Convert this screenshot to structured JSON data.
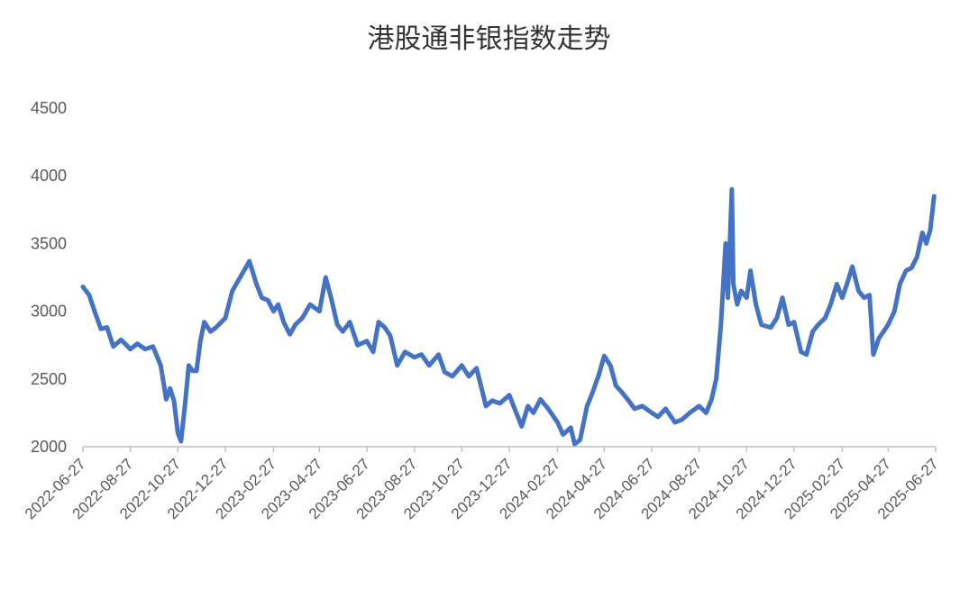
{
  "chart_data": {
    "type": "line",
    "title": "港股通非银指数走势",
    "xlabel": "",
    "ylabel": "",
    "ylim": [
      2000,
      4500
    ],
    "yticks": [
      2000,
      2500,
      3000,
      3500,
      4000,
      4500
    ],
    "xticks": [
      "2022-06-27",
      "2022-08-27",
      "2022-10-27",
      "2022-12-27",
      "2023-02-27",
      "2023-04-27",
      "2023-06-27",
      "2023-08-27",
      "2023-10-27",
      "2023-12-27",
      "2024-02-27",
      "2024-04-27",
      "2024-06-27",
      "2024-08-27",
      "2024-10-27",
      "2024-12-27",
      "2025-02-27",
      "2025-04-27",
      "2025-06-27"
    ],
    "grid": false,
    "legend": "none",
    "colors": {
      "line": "#4472C4",
      "axis": "#BFBFBF"
    },
    "series": [
      {
        "values": [
          [
            "2022-06-27",
            3180
          ],
          [
            "2022-07-05",
            3120
          ],
          [
            "2022-07-12",
            3000
          ],
          [
            "2022-07-20",
            2870
          ],
          [
            "2022-07-28",
            2880
          ],
          [
            "2022-08-05",
            2740
          ],
          [
            "2022-08-15",
            2790
          ],
          [
            "2022-08-27",
            2720
          ],
          [
            "2022-09-05",
            2760
          ],
          [
            "2022-09-15",
            2720
          ],
          [
            "2022-09-25",
            2740
          ],
          [
            "2022-10-05",
            2600
          ],
          [
            "2022-10-12",
            2350
          ],
          [
            "2022-10-17",
            2430
          ],
          [
            "2022-10-22",
            2340
          ],
          [
            "2022-10-27",
            2100
          ],
          [
            "2022-10-31",
            2040
          ],
          [
            "2022-11-05",
            2300
          ],
          [
            "2022-11-10",
            2600
          ],
          [
            "2022-11-15",
            2560
          ],
          [
            "2022-11-20",
            2560
          ],
          [
            "2022-11-25",
            2780
          ],
          [
            "2022-11-30",
            2920
          ],
          [
            "2022-12-08",
            2850
          ],
          [
            "2022-12-15",
            2880
          ],
          [
            "2022-12-27",
            2950
          ],
          [
            "2023-01-05",
            3150
          ],
          [
            "2023-01-15",
            3250
          ],
          [
            "2023-01-27",
            3370
          ],
          [
            "2023-02-05",
            3200
          ],
          [
            "2023-02-12",
            3100
          ],
          [
            "2023-02-20",
            3080
          ],
          [
            "2023-02-27",
            3000
          ],
          [
            "2023-03-05",
            3050
          ],
          [
            "2023-03-12",
            2920
          ],
          [
            "2023-03-20",
            2830
          ],
          [
            "2023-03-27",
            2900
          ],
          [
            "2023-04-05",
            2950
          ],
          [
            "2023-04-15",
            3050
          ],
          [
            "2023-04-27",
            3000
          ],
          [
            "2023-05-05",
            3250
          ],
          [
            "2023-05-12",
            3100
          ],
          [
            "2023-05-20",
            2900
          ],
          [
            "2023-05-27",
            2850
          ],
          [
            "2023-06-05",
            2920
          ],
          [
            "2023-06-15",
            2750
          ],
          [
            "2023-06-27",
            2780
          ],
          [
            "2023-07-05",
            2700
          ],
          [
            "2023-07-12",
            2920
          ],
          [
            "2023-07-20",
            2880
          ],
          [
            "2023-07-27",
            2820
          ],
          [
            "2023-08-05",
            2600
          ],
          [
            "2023-08-15",
            2700
          ],
          [
            "2023-08-27",
            2660
          ],
          [
            "2023-09-05",
            2680
          ],
          [
            "2023-09-15",
            2600
          ],
          [
            "2023-09-27",
            2680
          ],
          [
            "2023-10-05",
            2550
          ],
          [
            "2023-10-15",
            2520
          ],
          [
            "2023-10-27",
            2600
          ],
          [
            "2023-11-05",
            2520
          ],
          [
            "2023-11-15",
            2580
          ],
          [
            "2023-11-27",
            2300
          ],
          [
            "2023-12-05",
            2340
          ],
          [
            "2023-12-15",
            2320
          ],
          [
            "2023-12-27",
            2380
          ],
          [
            "2024-01-05",
            2250
          ],
          [
            "2024-01-12",
            2150
          ],
          [
            "2024-01-20",
            2300
          ],
          [
            "2024-01-27",
            2250
          ],
          [
            "2024-02-05",
            2350
          ],
          [
            "2024-02-15",
            2280
          ],
          [
            "2024-02-27",
            2180
          ],
          [
            "2024-03-05",
            2090
          ],
          [
            "2024-03-15",
            2140
          ],
          [
            "2024-03-20",
            2020
          ],
          [
            "2024-03-27",
            2050
          ],
          [
            "2024-04-05",
            2300
          ],
          [
            "2024-04-12",
            2400
          ],
          [
            "2024-04-20",
            2530
          ],
          [
            "2024-04-27",
            2670
          ],
          [
            "2024-05-05",
            2600
          ],
          [
            "2024-05-12",
            2450
          ],
          [
            "2024-05-20",
            2400
          ],
          [
            "2024-05-27",
            2350
          ],
          [
            "2024-06-05",
            2280
          ],
          [
            "2024-06-15",
            2300
          ],
          [
            "2024-06-27",
            2250
          ],
          [
            "2024-07-05",
            2220
          ],
          [
            "2024-07-15",
            2280
          ],
          [
            "2024-07-27",
            2180
          ],
          [
            "2024-08-05",
            2200
          ],
          [
            "2024-08-15",
            2250
          ],
          [
            "2024-08-27",
            2300
          ],
          [
            "2024-09-05",
            2250
          ],
          [
            "2024-09-12",
            2350
          ],
          [
            "2024-09-18",
            2500
          ],
          [
            "2024-09-24",
            2900
          ],
          [
            "2024-09-30",
            3500
          ],
          [
            "2024-10-03",
            3100
          ],
          [
            "2024-10-08",
            3900
          ],
          [
            "2024-10-10",
            3200
          ],
          [
            "2024-10-15",
            3050
          ],
          [
            "2024-10-20",
            3150
          ],
          [
            "2024-10-27",
            3100
          ],
          [
            "2024-11-01",
            3300
          ],
          [
            "2024-11-08",
            3050
          ],
          [
            "2024-11-15",
            2900
          ],
          [
            "2024-11-27",
            2880
          ],
          [
            "2024-12-05",
            2950
          ],
          [
            "2024-12-12",
            3100
          ],
          [
            "2024-12-20",
            2900
          ],
          [
            "2024-12-27",
            2920
          ],
          [
            "2025-01-05",
            2700
          ],
          [
            "2025-01-12",
            2680
          ],
          [
            "2025-01-20",
            2850
          ],
          [
            "2025-01-27",
            2900
          ],
          [
            "2025-02-05",
            2950
          ],
          [
            "2025-02-12",
            3050
          ],
          [
            "2025-02-20",
            3200
          ],
          [
            "2025-02-27",
            3100
          ],
          [
            "2025-03-05",
            3200
          ],
          [
            "2025-03-12",
            3330
          ],
          [
            "2025-03-20",
            3150
          ],
          [
            "2025-03-27",
            3100
          ],
          [
            "2025-04-03",
            3120
          ],
          [
            "2025-04-08",
            2680
          ],
          [
            "2025-04-15",
            2800
          ],
          [
            "2025-04-27",
            2900
          ],
          [
            "2025-05-05",
            3000
          ],
          [
            "2025-05-12",
            3200
          ],
          [
            "2025-05-20",
            3300
          ],
          [
            "2025-05-27",
            3320
          ],
          [
            "2025-06-03",
            3400
          ],
          [
            "2025-06-10",
            3580
          ],
          [
            "2025-06-15",
            3500
          ],
          [
            "2025-06-20",
            3600
          ],
          [
            "2025-06-25",
            3850
          ]
        ]
      }
    ]
  }
}
